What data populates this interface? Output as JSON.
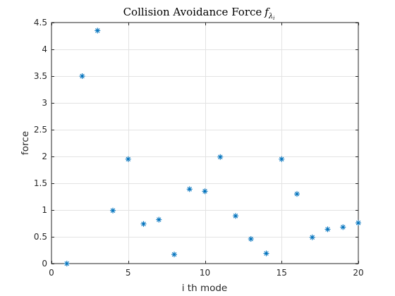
{
  "chart_data": {
    "type": "scatter",
    "title": "Collision Avoidance Force",
    "title_math": {
      "base": "f",
      "sub": "λ",
      "subsub": "i"
    },
    "xlabel": "i th mode",
    "ylabel": "force",
    "xlim": [
      0,
      20
    ],
    "ylim": [
      0,
      4.5
    ],
    "xticks": [
      0,
      5,
      10,
      15,
      20
    ],
    "xtick_labels": [
      "0",
      "5",
      "10",
      "15",
      "20"
    ],
    "yticks": [
      0,
      0.5,
      1,
      1.5,
      2,
      2.5,
      3,
      3.5,
      4,
      4.5
    ],
    "ytick_labels": [
      "0",
      "0.5",
      "1",
      "1.5",
      "2",
      "2.5",
      "3",
      "3.5",
      "4",
      "4.5"
    ],
    "grid": true,
    "marker": "asterisk",
    "color": "#0072BD",
    "series": [
      {
        "x": [
          1,
          2,
          3,
          4,
          5,
          6,
          7,
          8,
          9,
          10,
          11,
          12,
          13,
          14,
          15,
          16,
          17,
          18,
          19,
          20
        ],
        "y": [
          0.0,
          3.5,
          4.35,
          0.99,
          1.95,
          0.74,
          0.82,
          0.17,
          1.39,
          1.35,
          1.99,
          0.89,
          0.46,
          0.19,
          1.95,
          1.3,
          0.49,
          0.64,
          0.68,
          0.76
        ]
      }
    ]
  }
}
